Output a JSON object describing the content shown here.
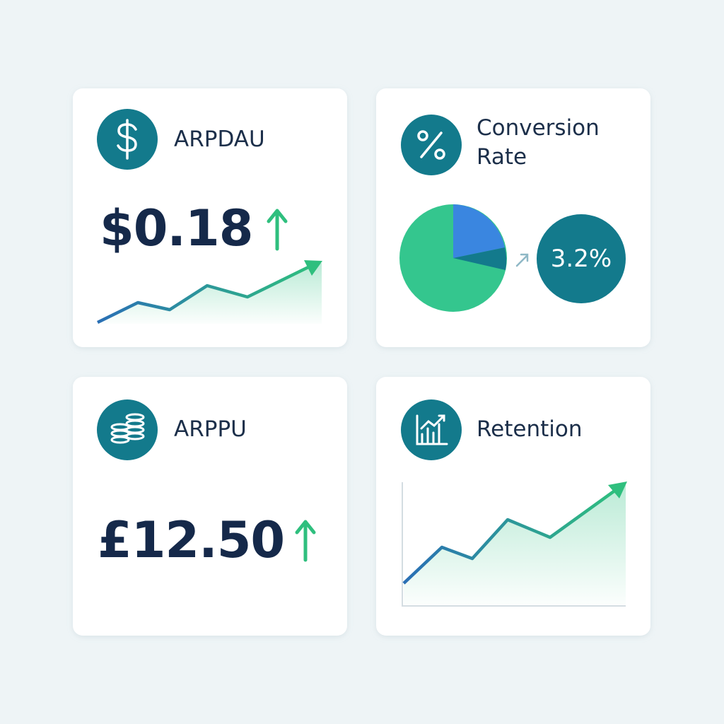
{
  "cards": [
    {
      "title": "ARPDAU",
      "value": "$0.18"
    },
    {
      "title": "Conversion Rate",
      "value": "3.2%"
    },
    {
      "title": "ARPPU",
      "value": "£12.50"
    },
    {
      "title": "Retention"
    }
  ]
}
